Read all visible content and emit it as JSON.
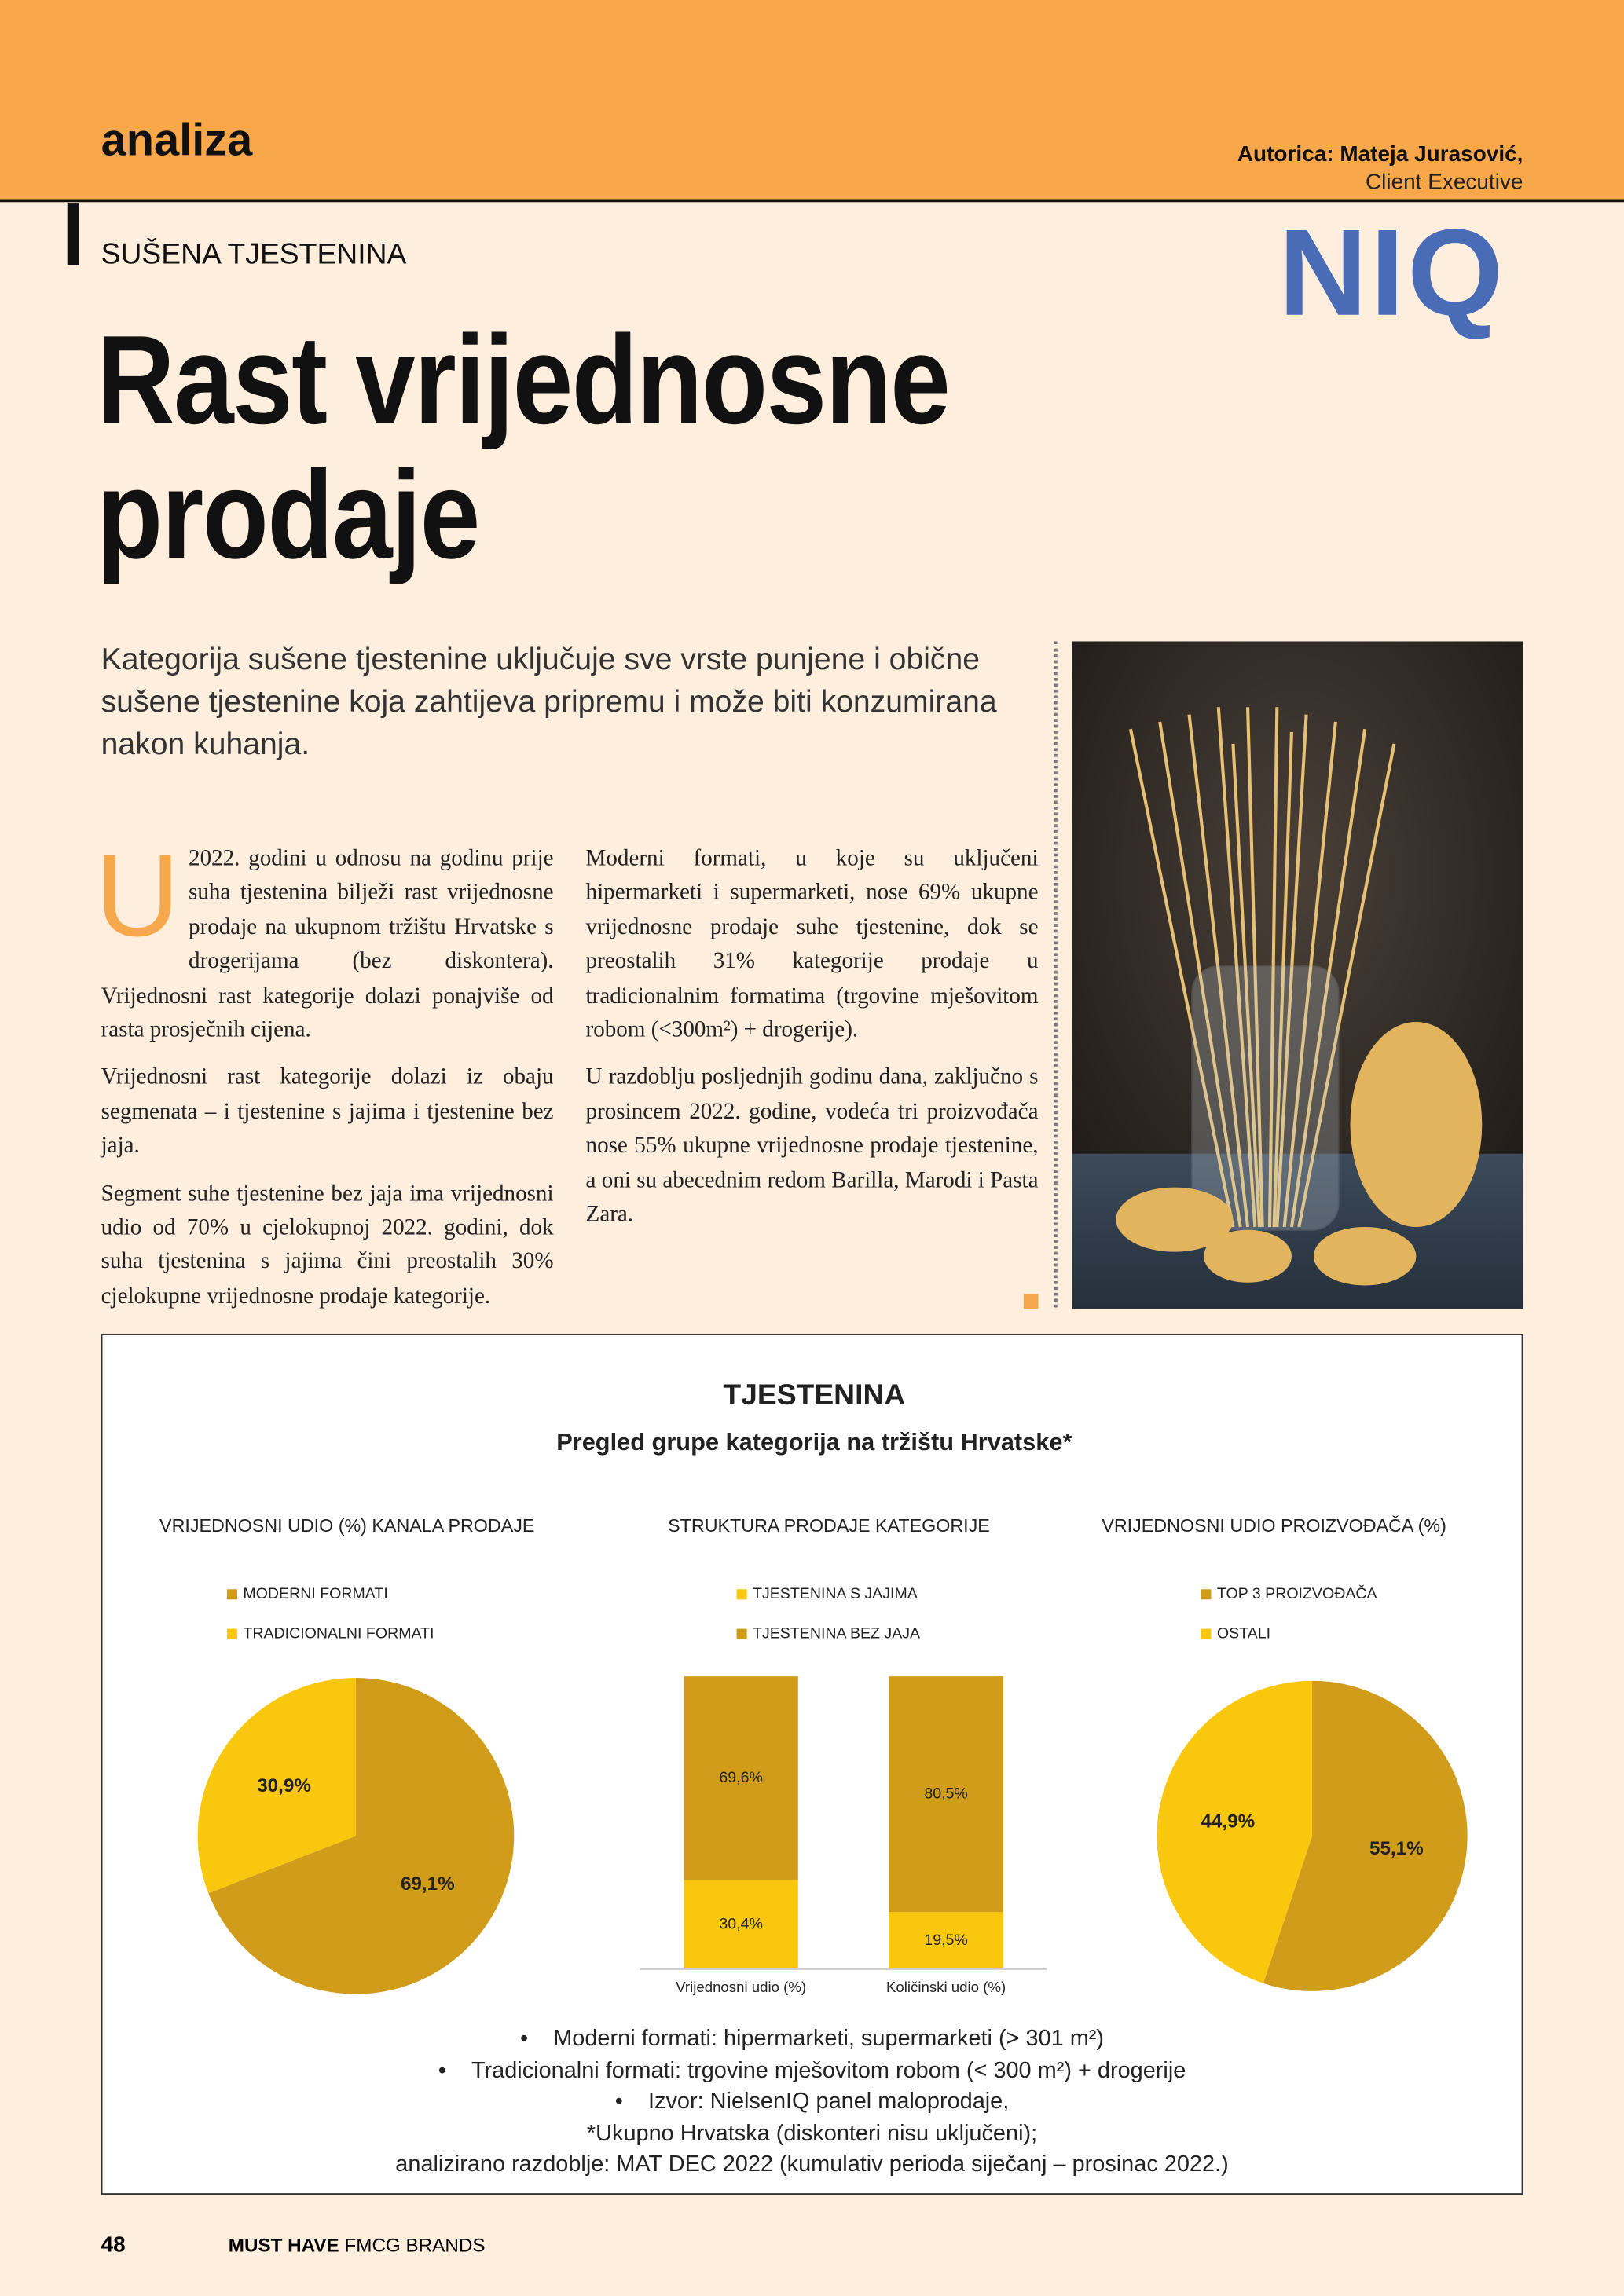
{
  "header": {
    "section": "analiza",
    "author": "Autorica: Mateja Jurasović,",
    "role": "Client Executive",
    "logo": "NIQ"
  },
  "kicker": "SUŠENA TJESTENINA",
  "title": "Rast vrijednosne prodaje",
  "lead": "Kategorija sušene tjestenine uključuje sve vrste punjene i obične sušene tjestenine koja zahtijeva pripremu i može biti konzumirana nakon kuhanja.",
  "body": {
    "dropcap": "U",
    "paragraphs": [
      "2022. godini u odnosu na godinu prije suha tjestenina bilježi rast vrijednosne prodaje na ukupnom tržištu Hrvatske s drogerijama (bez diskontera). Vrijednosni rast kategorije dolazi ponajviše od rasta prosječnih cijena.",
      "Vrijednosni rast kategorije dolazi iz obaju segmenata – i tjestenine s jajima i tjestenine bez jaja.",
      "Segment suhe tjestenine bez jaja ima vrijednosni udio od 70% u cjelokupnoj 2022. godini, dok suha tjestenina s jajima čini preostalih 30% cjelokupne vrijednosne prodaje kategorije.",
      "Moderni formati, u koje su uključeni hipermarketi i supermarketi, nose 69% ukupne vrijednosne prodaje suhe tjestenine, dok se preostalih 31% kategorije prodaje u tradicionalnim formatima (trgovine mješovitom robom (<300m²) + drogerije).",
      "U razdoblju posljednjih godinu dana, zaključno s prosincem 2022. godine, vodeća tri proizvođača nose 55% ukupne vrijednosne prodaje tjestenine, a oni su abecednim redom Barilla, Marodi i Pasta Zara."
    ]
  },
  "chart_box": {
    "title": "TJESTENINA",
    "subtitle": "Pregled grupe kategorija na tržištu Hrvatske*",
    "notes": [
      "Moderni formati: hipermarketi, supermarketi (> 301 m²)",
      "Tradicionalni formati: trgovine mješovitom robom (< 300 m²) + drogerije",
      "Izvor: NielsenIQ panel maloprodaje,",
      "*Ukupno Hrvatska (diskonteri nisu uključeni);",
      "analizirano razdoblje: MAT DEC 2022 (kumulativ perioda siječanj – prosinac 2022.)"
    ]
  },
  "chart_data": [
    {
      "type": "pie",
      "title": "VRIJEDNOSNI UDIO (%) KANALA PRODAJE",
      "categories": [
        "MODERNI FORMATI",
        "TRADICIONALNI FORMATI"
      ],
      "values": [
        69.1,
        30.9
      ],
      "value_labels": [
        "69,1%",
        "30,9%"
      ],
      "colors": [
        "#d09c1a",
        "#f9c80e"
      ]
    },
    {
      "type": "stacked_bar",
      "title": "STRUKTURA PRODAJE KATEGORIJE",
      "categories": [
        "Vrijednosni udio (%)",
        "Količinski udio (%)"
      ],
      "series": [
        {
          "name": "TJESTENINA S JAJIMA",
          "color": "#f9c80e",
          "values": [
            30.4,
            19.5
          ],
          "value_labels": [
            "30,4%",
            "19,5%"
          ]
        },
        {
          "name": "TJESTENINA BEZ JAJA",
          "color": "#d09c1a",
          "values": [
            69.6,
            80.5
          ],
          "value_labels": [
            "69,6%",
            "80,5%"
          ]
        }
      ]
    },
    {
      "type": "pie",
      "title": "VRIJEDNOSNI UDIO PROIZVOĐAČA (%)",
      "categories": [
        "TOP 3 PROIZVOĐAČA",
        "OSTALI"
      ],
      "values": [
        55.1,
        44.9
      ],
      "value_labels": [
        "55,1%",
        "44,9%"
      ],
      "colors": [
        "#d09c1a",
        "#f9c80e"
      ]
    }
  ],
  "footer": {
    "page": "48",
    "magazine": "MUST HAVE",
    "subtitle": "FMCG BRANDS"
  }
}
